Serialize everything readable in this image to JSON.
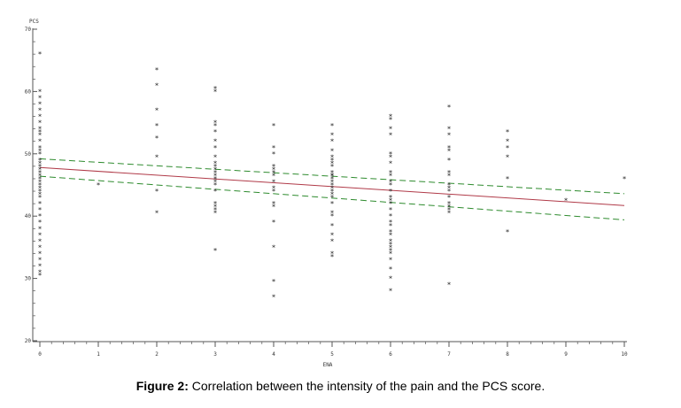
{
  "caption": {
    "label": "Figure 2:",
    "text": " Correlation between the intensity of the pain and the PCS score."
  },
  "chart_data": {
    "type": "scatter",
    "marker": "*",
    "xlabel": "ENA",
    "ylabel": "PCS",
    "xlim": [
      0,
      10
    ],
    "ylim": [
      20,
      70
    ],
    "x_ticks": [
      "0",
      "1",
      "2",
      "3",
      "4",
      "5",
      "6",
      "7",
      "8",
      "9",
      "10"
    ],
    "y_ticks": [
      "20",
      "30",
      "40",
      "50",
      "60",
      "70"
    ],
    "grid": false,
    "colors": {
      "fit": "#b03a48",
      "ci": "#2e8b2e",
      "marker": "#222222",
      "axis": "#555555"
    },
    "fit_line": {
      "x": [
        0,
        10
      ],
      "y": [
        47.8,
        41.7
      ]
    },
    "ci_upper": {
      "x": [
        0,
        10
      ],
      "y": [
        49.2,
        43.6
      ]
    },
    "ci_lower": {
      "x": [
        0,
        10
      ],
      "y": [
        46.4,
        39.4
      ]
    },
    "points": {
      "x": [
        0,
        0,
        0,
        0,
        0,
        0,
        0,
        0,
        0,
        0,
        0,
        0,
        0,
        0,
        0,
        0,
        0,
        0,
        0,
        0,
        0,
        0,
        0,
        0,
        0,
        0,
        0,
        0,
        0,
        0,
        0,
        0,
        0,
        0,
        0,
        0,
        0,
        0,
        0,
        0,
        1,
        2,
        2,
        2,
        2,
        2,
        2,
        2,
        2,
        3,
        3,
        3,
        3,
        3,
        3,
        3,
        3,
        3,
        3,
        3,
        3,
        3,
        3,
        3,
        3,
        3,
        3,
        3,
        3,
        3,
        3,
        4,
        4,
        4,
        4,
        4,
        4,
        4,
        4,
        4,
        4,
        4,
        4,
        4,
        4,
        4,
        4,
        5,
        5,
        5,
        5,
        5,
        5,
        5,
        5,
        5,
        5,
        5,
        5,
        5,
        5,
        5,
        5,
        5,
        5,
        5,
        5,
        5,
        5,
        5,
        5,
        5,
        5,
        6,
        6,
        6,
        6,
        6,
        6,
        6,
        6,
        6,
        6,
        6,
        6,
        6,
        6,
        6,
        6,
        6,
        6,
        6,
        6,
        6,
        6,
        6,
        6,
        6,
        6,
        6,
        6,
        6,
        6,
        7,
        7,
        7,
        7,
        7,
        7,
        7,
        7,
        7,
        7,
        7,
        7,
        7,
        7,
        7,
        7,
        7,
        8,
        8,
        8,
        8,
        8,
        8,
        9,
        10
      ],
      "y": [
        66,
        60,
        59,
        58,
        57,
        56,
        55,
        54,
        53,
        52,
        51,
        50,
        49,
        48,
        47,
        46,
        45,
        44,
        43,
        42,
        41,
        40,
        39,
        38,
        37,
        36,
        35,
        34,
        33,
        32,
        31,
        30.5,
        44.5,
        45.5,
        46.5,
        47.5,
        48.5,
        50.5,
        53.5,
        43.5,
        45,
        63.5,
        61,
        54.5,
        52.5,
        49.5,
        44,
        40.5,
        57,
        60.5,
        60,
        54.5,
        53.5,
        52,
        51,
        49.5,
        48.5,
        48,
        47.5,
        47,
        46.5,
        46,
        45.5,
        45,
        44,
        42,
        41.5,
        41,
        40.5,
        34.5,
        55,
        54.5,
        51,
        50,
        48,
        47.5,
        47,
        46.5,
        45.5,
        44.5,
        44,
        42,
        41.5,
        39,
        35,
        29.5,
        27,
        54.5,
        53,
        52,
        50.5,
        49.5,
        48.5,
        48,
        47,
        46.5,
        46,
        45.5,
        45,
        44.5,
        44,
        43,
        42,
        40.5,
        40,
        38.5,
        37,
        36,
        34,
        33.5,
        46.5,
        43.5,
        49,
        56,
        55.5,
        54,
        53,
        50,
        49.5,
        48.5,
        47,
        46.5,
        45,
        44,
        43,
        42.5,
        41,
        40,
        38.5,
        37.5,
        37,
        35.5,
        35,
        34.5,
        34,
        33,
        31.5,
        30,
        28,
        45.5,
        42,
        39,
        36,
        57.5,
        54,
        53,
        51,
        50.5,
        49,
        47,
        46.5,
        45,
        44.5,
        44,
        43,
        42,
        41.5,
        41,
        40.5,
        29,
        53.5,
        52,
        51,
        49.5,
        46,
        37.5,
        42.5,
        46
      ]
    }
  }
}
